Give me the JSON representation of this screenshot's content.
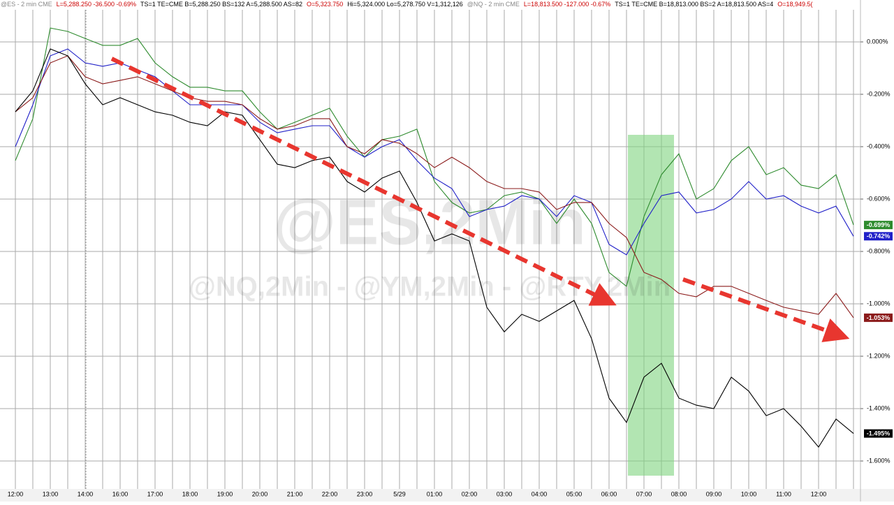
{
  "header": [
    {
      "text": "@ES - 2 min  CME",
      "color": "#888888"
    },
    {
      "text": "L=5,288.250  -36.500  -0.69%",
      "color": "#cc0000"
    },
    {
      "text": "TS=1  TE=CME  B=5,288.250  BS=132  A=5,288.500  AS=82",
      "color": "#000000"
    },
    {
      "text": "O=5,323.750",
      "color": "#cc0000"
    },
    {
      "text": "Hi=5,324.000  Lo=5,278.750  V=1,312,126",
      "color": "#000000"
    },
    {
      "text": "@NQ - 2 min  CME",
      "color": "#888888"
    },
    {
      "text": "L=18,813.500  -127.000  -0.67%",
      "color": "#cc0000"
    },
    {
      "text": "TS=1  TE=CME  B=18,813.000  BS=2  A=18,813.500  AS=4",
      "color": "#000000"
    },
    {
      "text": "O=18,949.5(",
      "color": "#cc0000"
    }
  ],
  "chart_data": {
    "type": "line",
    "watermark": [
      "@ES,2Min",
      "@NQ,2Min - @YM,2Min - @RTY,2Min"
    ],
    "categories": [
      "12:00",
      null,
      "13:00",
      null,
      "14:00",
      null,
      "16:00",
      null,
      "17:00",
      null,
      "18:00",
      null,
      "19:00",
      null,
      "20:00",
      null,
      "21:00",
      null,
      "22:00",
      null,
      "23:00",
      null,
      "5/29",
      null,
      "01:00",
      null,
      "02:00",
      null,
      "03:00",
      null,
      "04:00",
      null,
      "05:00",
      null,
      "06:00",
      null,
      "07:00",
      null,
      "08:00",
      null,
      "09:00",
      null,
      "10:00",
      null,
      "11:00",
      null,
      "12:00",
      null,
      null
    ],
    "ylim": [
      -1.7,
      0.16
    ],
    "yticks": [
      {
        "value": 0,
        "label": "0.000%"
      },
      {
        "value": -0.2,
        "label": "-0.200%"
      },
      {
        "value": -0.4,
        "label": "-0.400%"
      },
      {
        "value": -0.6,
        "label": "-0.600%"
      },
      {
        "value": -0.8,
        "label": "-0.800%"
      },
      {
        "value": -1.0,
        "label": "-1.000%"
      },
      {
        "value": -1.2,
        "label": "-1.200%"
      },
      {
        "value": -1.4,
        "label": "-1.400%"
      },
      {
        "value": -1.6,
        "label": "-1.600%"
      }
    ],
    "grid": true,
    "series": [
      {
        "color": "#2e8b2e",
        "values": [
          -0.453,
          -0.293,
          0.053,
          0.04,
          0.013,
          -0.013,
          -0.013,
          0.013,
          -0.08,
          -0.133,
          -0.173,
          -0.173,
          -0.187,
          -0.187,
          -0.267,
          -0.333,
          -0.307,
          -0.28,
          -0.253,
          -0.36,
          -0.44,
          -0.373,
          -0.36,
          -0.333,
          -0.533,
          -0.613,
          -0.653,
          -0.64,
          -0.587,
          -0.573,
          -0.6,
          -0.693,
          -0.6,
          -0.693,
          -0.88,
          -0.933,
          -0.667,
          -0.507,
          -0.427,
          -0.6,
          -0.56,
          -0.453,
          -0.4,
          -0.507,
          -0.48,
          -0.547,
          -0.56,
          -0.507,
          -0.699
        ],
        "value_labels": [
          null,
          null,
          null,
          null,
          null,
          null,
          null,
          null,
          null,
          null,
          null,
          null,
          null,
          null,
          null,
          null,
          null,
          null,
          null,
          null,
          null,
          null,
          null,
          null,
          null,
          null,
          null,
          null,
          null,
          null,
          null,
          null,
          null,
          null,
          null,
          null,
          null,
          null,
          null,
          null,
          null,
          null,
          null,
          null,
          null,
          null,
          null,
          null,
          "-0.699%"
        ]
      },
      {
        "color": "#2020c8",
        "values": [
          -0.4,
          -0.24,
          -0.053,
          -0.027,
          -0.08,
          -0.093,
          -0.08,
          -0.107,
          -0.133,
          -0.187,
          -0.24,
          -0.24,
          -0.24,
          -0.24,
          -0.307,
          -0.347,
          -0.333,
          -0.32,
          -0.32,
          -0.4,
          -0.44,
          -0.4,
          -0.373,
          -0.453,
          -0.52,
          -0.56,
          -0.667,
          -0.64,
          -0.627,
          -0.587,
          -0.6,
          -0.667,
          -0.587,
          -0.613,
          -0.773,
          -0.813,
          -0.693,
          -0.587,
          -0.573,
          -0.653,
          -0.64,
          -0.6,
          -0.533,
          -0.6,
          -0.587,
          -0.627,
          -0.653,
          -0.627,
          -0.742
        ],
        "value_labels": [
          null,
          null,
          null,
          null,
          null,
          null,
          null,
          null,
          null,
          null,
          null,
          null,
          null,
          null,
          null,
          null,
          null,
          null,
          null,
          null,
          null,
          null,
          null,
          null,
          null,
          null,
          null,
          null,
          null,
          null,
          null,
          null,
          null,
          null,
          null,
          null,
          null,
          null,
          null,
          null,
          null,
          null,
          null,
          null,
          null,
          null,
          null,
          null,
          "-0.742%"
        ]
      },
      {
        "color": "#8b1a1a",
        "values": [
          -0.267,
          -0.213,
          -0.08,
          -0.053,
          -0.133,
          -0.16,
          -0.147,
          -0.133,
          -0.16,
          -0.187,
          -0.213,
          -0.227,
          -0.227,
          -0.24,
          -0.293,
          -0.333,
          -0.32,
          -0.293,
          -0.293,
          -0.4,
          -0.427,
          -0.373,
          -0.387,
          -0.427,
          -0.48,
          -0.44,
          -0.48,
          -0.533,
          -0.56,
          -0.56,
          -0.573,
          -0.64,
          -0.613,
          -0.613,
          -0.693,
          -0.747,
          -0.88,
          -0.907,
          -0.96,
          -0.973,
          -0.933,
          -0.933,
          -0.96,
          -0.987,
          -1.013,
          -1.027,
          -1.04,
          -0.96,
          -1.053
        ],
        "value_labels": [
          null,
          null,
          null,
          null,
          null,
          null,
          null,
          null,
          null,
          null,
          null,
          null,
          null,
          null,
          null,
          null,
          null,
          null,
          null,
          null,
          null,
          null,
          null,
          null,
          null,
          null,
          null,
          null,
          null,
          null,
          null,
          null,
          null,
          null,
          null,
          null,
          null,
          null,
          null,
          null,
          null,
          null,
          null,
          null,
          null,
          null,
          null,
          null,
          "-1.053%"
        ]
      },
      {
        "color": "#000000",
        "values": [
          -0.267,
          -0.187,
          -0.027,
          -0.053,
          -0.16,
          -0.24,
          -0.213,
          -0.24,
          -0.267,
          -0.28,
          -0.307,
          -0.32,
          -0.267,
          -0.28,
          -0.373,
          -0.467,
          -0.48,
          -0.453,
          -0.44,
          -0.533,
          -0.573,
          -0.52,
          -0.493,
          -0.613,
          -0.76,
          -0.733,
          -0.76,
          -1.013,
          -1.107,
          -1.04,
          -1.067,
          -1.027,
          -0.987,
          -1.133,
          -1.36,
          -1.453,
          -1.28,
          -1.227,
          -1.36,
          -1.387,
          -1.4,
          -1.28,
          -1.333,
          -1.427,
          -1.4,
          -1.467,
          -1.547,
          -1.44,
          -1.495
        ],
        "value_labels": [
          null,
          null,
          null,
          null,
          null,
          null,
          null,
          null,
          null,
          null,
          null,
          null,
          null,
          null,
          null,
          null,
          null,
          null,
          null,
          null,
          null,
          null,
          null,
          null,
          null,
          null,
          null,
          null,
          null,
          null,
          null,
          null,
          null,
          null,
          null,
          null,
          null,
          null,
          null,
          null,
          null,
          null,
          null,
          null,
          null,
          null,
          null,
          null,
          "-1.495%"
        ]
      }
    ]
  }
}
